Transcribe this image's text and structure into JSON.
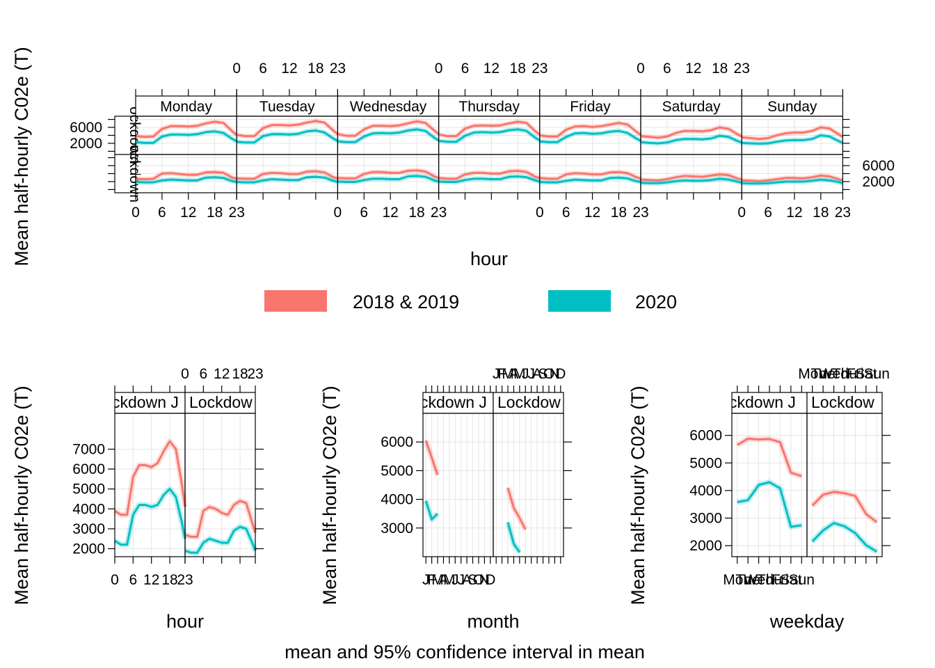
{
  "colors": {
    "series_2018_2019": "#F8766D",
    "series_2020": "#00BFC4",
    "grid": "#e5e5e5",
    "strip": "#ffffff"
  },
  "footer_text": "mean and 95% confidence interval in mean",
  "legend": {
    "items": [
      {
        "label": "2018 & 2019",
        "color": "#F8766D"
      },
      {
        "label": "2020",
        "color": "#00BFC4"
      }
    ]
  },
  "chart_data": [
    {
      "type": "line",
      "ylabel": "Mean half-hourly C02e (T)",
      "xlabel": "hour",
      "ylim": [
        -800,
        8800
      ],
      "x_ticks": [
        0,
        6,
        12,
        18,
        23
      ],
      "x_tick_labels": [
        "0",
        "6",
        "12",
        "18",
        "23"
      ],
      "y_ticks_top_row": [
        2000,
        6000
      ],
      "y_ticks_bottom_row": [
        2000,
        6000
      ],
      "columns": [
        "Monday",
        "Tuesday",
        "Wednesday",
        "Thursday",
        "Friday",
        "Saturday",
        "Sunday"
      ],
      "rows": [
        "Before Lockdown",
        "Lockdown"
      ],
      "row_strip_text": "ockdown",
      "x": [
        0,
        2,
        4,
        6,
        8,
        10,
        12,
        14,
        16,
        18,
        20,
        22,
        23
      ],
      "series": [
        {
          "name": "2018 & 2019",
          "color": "#F8766D",
          "panels": {
            "Before Lockdown": {
              "Monday": [
                3800,
                3600,
                3700,
                5600,
                6300,
                6300,
                6200,
                6400,
                7000,
                7400,
                7100,
                5000,
                4100
              ],
              "Tuesday": [
                4100,
                3800,
                3800,
                5800,
                6600,
                6600,
                6500,
                6700,
                7200,
                7600,
                7200,
                5200,
                4300
              ],
              "Wednesday": [
                4300,
                3900,
                3900,
                5500,
                6400,
                6400,
                6300,
                6500,
                7000,
                7500,
                7100,
                5200,
                4300
              ],
              "Thursday": [
                4200,
                3800,
                3800,
                5700,
                6400,
                6500,
                6400,
                6500,
                7000,
                7400,
                7100,
                5000,
                4200
              ],
              "Friday": [
                4000,
                3700,
                3700,
                5400,
                6200,
                6300,
                6100,
                6300,
                6700,
                7100,
                6700,
                4900,
                4100
              ],
              "Saturday": [
                3800,
                3600,
                3400,
                3700,
                4600,
                5100,
                5100,
                5000,
                5300,
                6000,
                5600,
                4300,
                3700
              ],
              "Sunday": [
                3500,
                3300,
                3100,
                3300,
                4000,
                4500,
                4700,
                4700,
                5100,
                6000,
                5700,
                4300,
                3600
              ]
            },
            "Lockdown": {
              "Monday": [
                2700,
                2600,
                2700,
                4000,
                4100,
                3900,
                3700,
                3700,
                4300,
                4400,
                4200,
                3000,
                2700
              ],
              "Tuesday": [
                2800,
                2700,
                2700,
                3900,
                4200,
                4100,
                3900,
                3900,
                4500,
                4600,
                4300,
                3100,
                2800
              ],
              "Wednesday": [
                2900,
                2800,
                2800,
                3900,
                4400,
                4400,
                4200,
                4200,
                4700,
                4800,
                4500,
                3300,
                2900
              ],
              "Thursday": [
                2900,
                2700,
                2700,
                3800,
                4200,
                4200,
                4000,
                4000,
                4600,
                4700,
                4400,
                3200,
                2900
              ],
              "Friday": [
                2900,
                2700,
                2700,
                3800,
                4100,
                4000,
                3800,
                3800,
                4300,
                4400,
                4100,
                3100,
                2800
              ],
              "Saturday": [
                2500,
                2400,
                2300,
                2600,
                3100,
                3400,
                3300,
                3200,
                3500,
                3800,
                3600,
                2800,
                2500
              ],
              "Sunday": [
                2300,
                2200,
                2100,
                2300,
                2600,
                2900,
                2900,
                2800,
                3100,
                3500,
                3300,
                2600,
                2300
              ]
            }
          }
        },
        {
          "name": "2020",
          "color": "#00BFC4",
          "panels": {
            "Before Lockdown": {
              "Monday": [
                2300,
                2100,
                2100,
                3700,
                4200,
                4200,
                4100,
                4300,
                4800,
                5000,
                4600,
                3100,
                2500
              ],
              "Tuesday": [
                2400,
                2200,
                2200,
                3800,
                4300,
                4300,
                4200,
                4400,
                5000,
                5200,
                4700,
                3200,
                2600
              ],
              "Wednesday": [
                2500,
                2300,
                2300,
                3700,
                4500,
                4600,
                4500,
                4700,
                5200,
                5500,
                5100,
                3400,
                2700
              ],
              "Thursday": [
                2600,
                2400,
                2400,
                3900,
                4700,
                4800,
                4700,
                4800,
                5300,
                5500,
                5100,
                3400,
                2700
              ],
              "Friday": [
                2500,
                2300,
                2300,
                3600,
                4500,
                4600,
                4400,
                4500,
                4900,
                5100,
                4600,
                3200,
                2600
              ],
              "Saturday": [
                2300,
                2100,
                2000,
                2200,
                2800,
                3100,
                3100,
                3000,
                3200,
                3900,
                3600,
                2600,
                2200
              ],
              "Sunday": [
                2100,
                2000,
                1900,
                2000,
                2400,
                2700,
                2800,
                2800,
                3100,
                4000,
                3700,
                2600,
                2100
              ]
            },
            "Lockdown": {
              "Monday": [
                1900,
                1800,
                1800,
                2300,
                2500,
                2400,
                2300,
                2300,
                3000,
                3100,
                2900,
                2100,
                1900
              ],
              "Tuesday": [
                1900,
                1800,
                1800,
                2300,
                2600,
                2500,
                2400,
                2400,
                3100,
                3200,
                3000,
                2200,
                1900
              ],
              "Wednesday": [
                2000,
                1900,
                1900,
                2400,
                2700,
                2700,
                2600,
                2600,
                3300,
                3400,
                3200,
                2300,
                2000
              ],
              "Thursday": [
                2000,
                1900,
                1900,
                2400,
                2700,
                2700,
                2600,
                2600,
                3200,
                3300,
                3100,
                2300,
                2000
              ],
              "Friday": [
                1900,
                1800,
                1800,
                2200,
                2500,
                2400,
                2300,
                2300,
                2900,
                3000,
                2800,
                2100,
                1900
              ],
              "Saturday": [
                1700,
                1600,
                1600,
                1800,
                2100,
                2300,
                2200,
                2200,
                2400,
                2700,
                2500,
                2000,
                1700
              ],
              "Sunday": [
                1600,
                1500,
                1500,
                1600,
                1800,
                2000,
                2000,
                2000,
                2200,
                2500,
                2300,
                1900,
                1600
              ]
            }
          }
        }
      ]
    },
    {
      "type": "line",
      "ylabel": "Mean half-hourly C02e (T)",
      "xlabel": "hour",
      "ylim": [
        1600,
        8800
      ],
      "y_ticks": [
        2000,
        3000,
        4000,
        5000,
        6000,
        7000
      ],
      "x_ticks": [
        0,
        6,
        12,
        18,
        23
      ],
      "x_tick_labels": [
        "0",
        "6",
        "12",
        "18",
        "23"
      ],
      "panels": [
        "Before Lockdown",
        "Lockdown"
      ],
      "strip_labels": [
        "ckdown J",
        "Lockdow"
      ],
      "x": [
        0,
        2,
        4,
        6,
        8,
        10,
        12,
        14,
        16,
        18,
        20,
        22,
        23
      ],
      "series": [
        {
          "name": "2018 & 2019",
          "color": "#F8766D",
          "panels": {
            "Before Lockdown": [
              3900,
              3700,
              3700,
              5600,
              6200,
              6200,
              6100,
              6300,
              6900,
              7400,
              7000,
              5200,
              4100
            ],
            "Lockdown": [
              2700,
              2600,
              2600,
              3900,
              4100,
              4000,
              3800,
              3700,
              4200,
              4400,
              4300,
              3300,
              2800
            ]
          }
        },
        {
          "name": "2020",
          "color": "#00BFC4",
          "panels": {
            "Before Lockdown": [
              2400,
              2200,
              2200,
              3700,
              4200,
              4200,
              4100,
              4200,
              4700,
              5000,
              4600,
              3300,
              2500
            ],
            "Lockdown": [
              1900,
              1800,
              1800,
              2300,
              2500,
              2400,
              2300,
              2300,
              2900,
              3100,
              3000,
              2300,
              1900
            ]
          }
        }
      ]
    },
    {
      "type": "line",
      "ylabel": "Mean half-hourly C02e (T)",
      "xlabel": "month",
      "ylim": [
        2000,
        7000
      ],
      "y_ticks": [
        3000,
        4000,
        5000,
        6000
      ],
      "x_ticks": [
        1,
        2,
        3,
        4,
        5,
        6,
        7,
        8,
        9,
        10,
        11,
        12
      ],
      "x_tick_labels": [
        "J",
        "F",
        "M",
        "A",
        "M",
        "J",
        "J",
        "A",
        "S",
        "O",
        "N",
        "D"
      ],
      "panels": [
        "Before Lockdown",
        "Lockdown"
      ],
      "strip_labels": [
        "ckdown J",
        "Lockdow"
      ],
      "series": [
        {
          "name": "2018 & 2019",
          "color": "#F8766D",
          "panels": {
            "Before Lockdown": {
              "x": [
                1,
                2,
                3
              ],
              "y": [
                6050,
                5450,
                4850
              ]
            },
            "Lockdown": {
              "x": [
                3,
                4,
                5,
                6
              ],
              "y": [
                4400,
                3700,
                3350,
                2950
              ]
            }
          }
        },
        {
          "name": "2020",
          "color": "#00BFC4",
          "panels": {
            "Before Lockdown": {
              "x": [
                1,
                2,
                3
              ],
              "y": [
                3950,
                3300,
                3500
              ]
            },
            "Lockdown": {
              "x": [
                3,
                4,
                5
              ],
              "y": [
                3200,
                2450,
                2150
              ]
            }
          }
        }
      ]
    },
    {
      "type": "line",
      "ylabel": "Mean half-hourly C02e (T)",
      "xlabel": "weekday",
      "ylim": [
        1600,
        6800
      ],
      "y_ticks": [
        2000,
        3000,
        4000,
        5000,
        6000
      ],
      "x_ticks": [
        1,
        2,
        3,
        4,
        5,
        6,
        7
      ],
      "x_tick_labels": [
        "Mon",
        "Tue",
        "Wed",
        "Thu",
        "Fri",
        "Sat",
        "Sun"
      ],
      "panels": [
        "Before Lockdown",
        "Lockdown"
      ],
      "strip_labels": [
        "ckdown J",
        "Lockdow"
      ],
      "series": [
        {
          "name": "2018 & 2019",
          "color": "#F8766D",
          "panels": {
            "Before Lockdown": [
              5650,
              5880,
              5850,
              5870,
              5750,
              4650,
              4520
            ],
            "Lockdown": [
              3450,
              3850,
              3950,
              3900,
              3800,
              3150,
              2850
            ]
          }
        },
        {
          "name": "2020",
          "color": "#00BFC4",
          "panels": {
            "Before Lockdown": [
              3580,
              3650,
              4200,
              4300,
              4080,
              2680,
              2740
            ],
            "Lockdown": [
              2150,
              2550,
              2820,
              2700,
              2450,
              2020,
              1780
            ]
          }
        }
      ]
    }
  ]
}
